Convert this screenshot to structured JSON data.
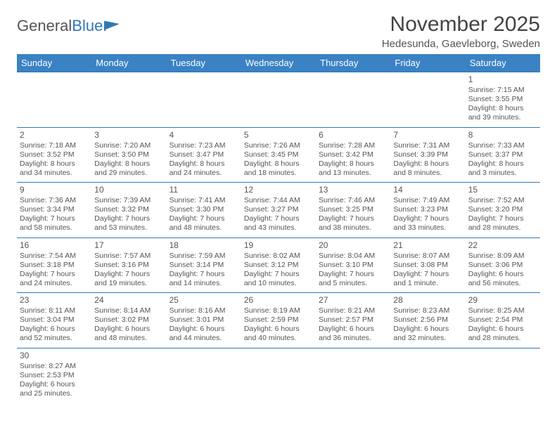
{
  "logo": {
    "text1": "General",
    "text2": "Blue"
  },
  "title": "November 2025",
  "subtitle": "Hedesunda, Gaevleborg, Sweden",
  "colors": {
    "header_bg": "#3a82c4",
    "header_text": "#ffffff",
    "cell_border": "#2f78b7",
    "text": "#555555",
    "logo_accent": "#2f78b7"
  },
  "weekdays": [
    "Sunday",
    "Monday",
    "Tuesday",
    "Wednesday",
    "Thursday",
    "Friday",
    "Saturday"
  ],
  "weeks": [
    [
      null,
      null,
      null,
      null,
      null,
      null,
      {
        "n": "1",
        "sr": "Sunrise: 7:15 AM",
        "ss": "Sunset: 3:55 PM",
        "dl1": "Daylight: 8 hours",
        "dl2": "and 39 minutes."
      }
    ],
    [
      {
        "n": "2",
        "sr": "Sunrise: 7:18 AM",
        "ss": "Sunset: 3:52 PM",
        "dl1": "Daylight: 8 hours",
        "dl2": "and 34 minutes."
      },
      {
        "n": "3",
        "sr": "Sunrise: 7:20 AM",
        "ss": "Sunset: 3:50 PM",
        "dl1": "Daylight: 8 hours",
        "dl2": "and 29 minutes."
      },
      {
        "n": "4",
        "sr": "Sunrise: 7:23 AM",
        "ss": "Sunset: 3:47 PM",
        "dl1": "Daylight: 8 hours",
        "dl2": "and 24 minutes."
      },
      {
        "n": "5",
        "sr": "Sunrise: 7:26 AM",
        "ss": "Sunset: 3:45 PM",
        "dl1": "Daylight: 8 hours",
        "dl2": "and 18 minutes."
      },
      {
        "n": "6",
        "sr": "Sunrise: 7:28 AM",
        "ss": "Sunset: 3:42 PM",
        "dl1": "Daylight: 8 hours",
        "dl2": "and 13 minutes."
      },
      {
        "n": "7",
        "sr": "Sunrise: 7:31 AM",
        "ss": "Sunset: 3:39 PM",
        "dl1": "Daylight: 8 hours",
        "dl2": "and 8 minutes."
      },
      {
        "n": "8",
        "sr": "Sunrise: 7:33 AM",
        "ss": "Sunset: 3:37 PM",
        "dl1": "Daylight: 8 hours",
        "dl2": "and 3 minutes."
      }
    ],
    [
      {
        "n": "9",
        "sr": "Sunrise: 7:36 AM",
        "ss": "Sunset: 3:34 PM",
        "dl1": "Daylight: 7 hours",
        "dl2": "and 58 minutes."
      },
      {
        "n": "10",
        "sr": "Sunrise: 7:39 AM",
        "ss": "Sunset: 3:32 PM",
        "dl1": "Daylight: 7 hours",
        "dl2": "and 53 minutes."
      },
      {
        "n": "11",
        "sr": "Sunrise: 7:41 AM",
        "ss": "Sunset: 3:30 PM",
        "dl1": "Daylight: 7 hours",
        "dl2": "and 48 minutes."
      },
      {
        "n": "12",
        "sr": "Sunrise: 7:44 AM",
        "ss": "Sunset: 3:27 PM",
        "dl1": "Daylight: 7 hours",
        "dl2": "and 43 minutes."
      },
      {
        "n": "13",
        "sr": "Sunrise: 7:46 AM",
        "ss": "Sunset: 3:25 PM",
        "dl1": "Daylight: 7 hours",
        "dl2": "and 38 minutes."
      },
      {
        "n": "14",
        "sr": "Sunrise: 7:49 AM",
        "ss": "Sunset: 3:23 PM",
        "dl1": "Daylight: 7 hours",
        "dl2": "and 33 minutes."
      },
      {
        "n": "15",
        "sr": "Sunrise: 7:52 AM",
        "ss": "Sunset: 3:20 PM",
        "dl1": "Daylight: 7 hours",
        "dl2": "and 28 minutes."
      }
    ],
    [
      {
        "n": "16",
        "sr": "Sunrise: 7:54 AM",
        "ss": "Sunset: 3:18 PM",
        "dl1": "Daylight: 7 hours",
        "dl2": "and 24 minutes."
      },
      {
        "n": "17",
        "sr": "Sunrise: 7:57 AM",
        "ss": "Sunset: 3:16 PM",
        "dl1": "Daylight: 7 hours",
        "dl2": "and 19 minutes."
      },
      {
        "n": "18",
        "sr": "Sunrise: 7:59 AM",
        "ss": "Sunset: 3:14 PM",
        "dl1": "Daylight: 7 hours",
        "dl2": "and 14 minutes."
      },
      {
        "n": "19",
        "sr": "Sunrise: 8:02 AM",
        "ss": "Sunset: 3:12 PM",
        "dl1": "Daylight: 7 hours",
        "dl2": "and 10 minutes."
      },
      {
        "n": "20",
        "sr": "Sunrise: 8:04 AM",
        "ss": "Sunset: 3:10 PM",
        "dl1": "Daylight: 7 hours",
        "dl2": "and 5 minutes."
      },
      {
        "n": "21",
        "sr": "Sunrise: 8:07 AM",
        "ss": "Sunset: 3:08 PM",
        "dl1": "Daylight: 7 hours",
        "dl2": "and 1 minute."
      },
      {
        "n": "22",
        "sr": "Sunrise: 8:09 AM",
        "ss": "Sunset: 3:06 PM",
        "dl1": "Daylight: 6 hours",
        "dl2": "and 56 minutes."
      }
    ],
    [
      {
        "n": "23",
        "sr": "Sunrise: 8:11 AM",
        "ss": "Sunset: 3:04 PM",
        "dl1": "Daylight: 6 hours",
        "dl2": "and 52 minutes."
      },
      {
        "n": "24",
        "sr": "Sunrise: 8:14 AM",
        "ss": "Sunset: 3:02 PM",
        "dl1": "Daylight: 6 hours",
        "dl2": "and 48 minutes."
      },
      {
        "n": "25",
        "sr": "Sunrise: 8:16 AM",
        "ss": "Sunset: 3:01 PM",
        "dl1": "Daylight: 6 hours",
        "dl2": "and 44 minutes."
      },
      {
        "n": "26",
        "sr": "Sunrise: 8:19 AM",
        "ss": "Sunset: 2:59 PM",
        "dl1": "Daylight: 6 hours",
        "dl2": "and 40 minutes."
      },
      {
        "n": "27",
        "sr": "Sunrise: 8:21 AM",
        "ss": "Sunset: 2:57 PM",
        "dl1": "Daylight: 6 hours",
        "dl2": "and 36 minutes."
      },
      {
        "n": "28",
        "sr": "Sunrise: 8:23 AM",
        "ss": "Sunset: 2:56 PM",
        "dl1": "Daylight: 6 hours",
        "dl2": "and 32 minutes."
      },
      {
        "n": "29",
        "sr": "Sunrise: 8:25 AM",
        "ss": "Sunset: 2:54 PM",
        "dl1": "Daylight: 6 hours",
        "dl2": "and 28 minutes."
      }
    ],
    [
      {
        "n": "30",
        "sr": "Sunrise: 8:27 AM",
        "ss": "Sunset: 2:53 PM",
        "dl1": "Daylight: 6 hours",
        "dl2": "and 25 minutes."
      },
      null,
      null,
      null,
      null,
      null,
      null
    ]
  ]
}
